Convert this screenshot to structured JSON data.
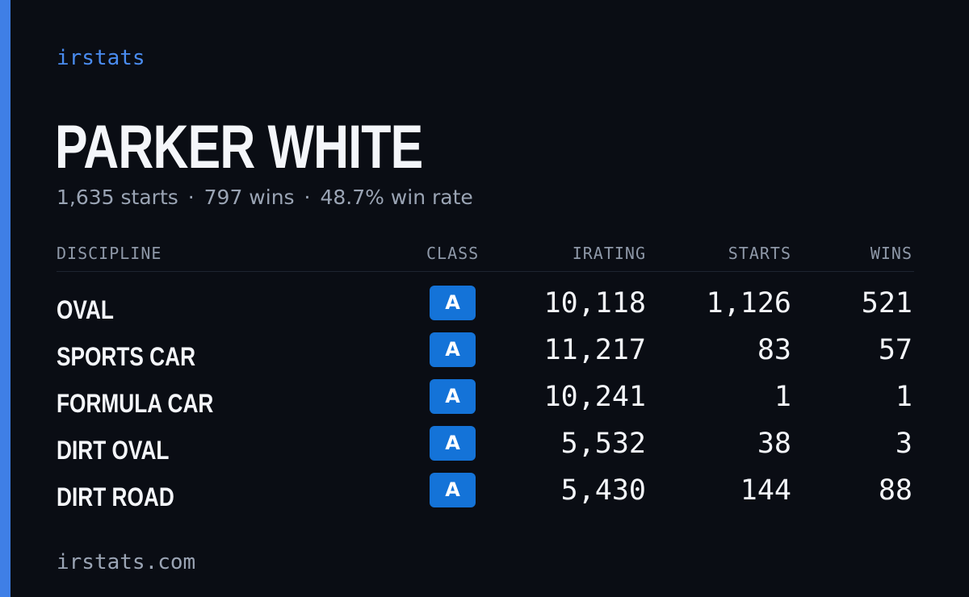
{
  "brand": "irstats",
  "driver": {
    "name": "PARKER WHITE",
    "summary": {
      "starts": "1,635 starts",
      "wins": "797 wins",
      "win_rate": "48.7% win rate",
      "separator": "·"
    }
  },
  "table": {
    "headers": {
      "discipline": "DISCIPLINE",
      "class": "CLASS",
      "irating": "IRATING",
      "starts": "STARTS",
      "wins": "WINS"
    },
    "rows": [
      {
        "discipline": "OVAL",
        "class": "A",
        "irating": "10,118",
        "starts": "1,126",
        "wins": "521"
      },
      {
        "discipline": "SPORTS CAR",
        "class": "A",
        "irating": "11,217",
        "starts": "83",
        "wins": "57"
      },
      {
        "discipline": "FORMULA CAR",
        "class": "A",
        "irating": "10,241",
        "starts": "1",
        "wins": "1"
      },
      {
        "discipline": "DIRT OVAL",
        "class": "A",
        "irating": "5,532",
        "starts": "38",
        "wins": "3"
      },
      {
        "discipline": "DIRT ROAD",
        "class": "A",
        "irating": "5,430",
        "starts": "144",
        "wins": "88"
      }
    ]
  },
  "footer": "irstats.com",
  "colors": {
    "background": "#0a0d14",
    "accent": "#3f7fe6",
    "brand_text": "#4a8cf0",
    "badge": "#1473d8",
    "muted_text": "#9aa4b4"
  }
}
